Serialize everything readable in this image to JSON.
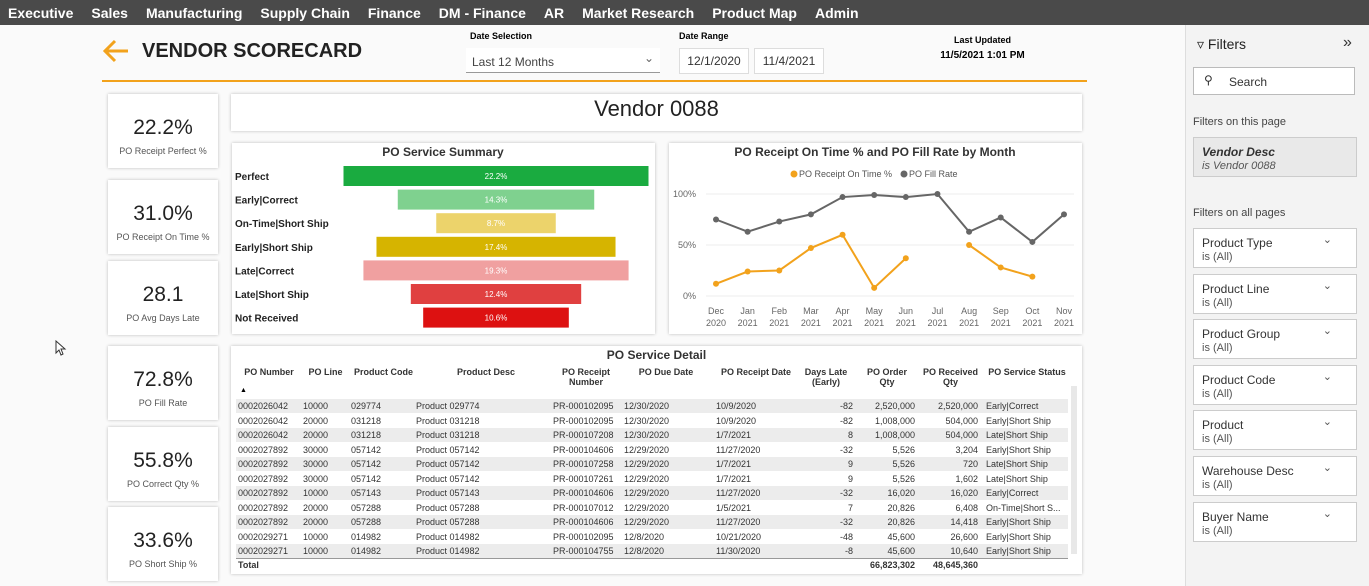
{
  "nav": [
    "Executive",
    "Sales",
    "Manufacturing",
    "Supply Chain",
    "Finance",
    "DM - Finance",
    "AR",
    "Market Research",
    "Product Map",
    "Admin"
  ],
  "header": {
    "title": "VENDOR SCORECARD",
    "date_selection_label": "Date Selection",
    "date_selection": "Last 12 Months",
    "date_range_label": "Date Range",
    "date_from": "12/1/2020",
    "date_to": "11/4/2021",
    "last_updated_label": "Last Updated",
    "last_updated": "11/5/2021 1:01 PM",
    "vendor": "Vendor 0088"
  },
  "kpis": [
    {
      "value": "22.2%",
      "label": "PO Receipt Perfect %"
    },
    {
      "value": "31.0%",
      "label": "PO Receipt On Time %"
    },
    {
      "value": "28.1",
      "label": "PO Avg Days Late"
    },
    {
      "value": "72.8%",
      "label": "PO Fill Rate"
    },
    {
      "value": "55.8%",
      "label": "PO Correct Qty %"
    },
    {
      "value": "33.6%",
      "label": "PO Short Ship %"
    }
  ],
  "chart_data": [
    {
      "type": "funnel",
      "title": "PO Service Summary",
      "categories": [
        "Perfect",
        "Early|Correct",
        "On-Time|Short Ship",
        "Early|Short Ship",
        "Late|Correct",
        "Late|Short Ship",
        "Not Received"
      ],
      "values": [
        22.2,
        14.3,
        8.7,
        17.4,
        19.3,
        12.4,
        10.6
      ],
      "value_labels": [
        "22.2%",
        "14.3%",
        "8.7%",
        "17.4%",
        "19.3%",
        "12.4%",
        "10.6%"
      ],
      "colors": [
        "#1aab40",
        "#7fd18f",
        "#ecd36b",
        "#d6b400",
        "#f0a0a0",
        "#e04040",
        "#dd1111"
      ]
    },
    {
      "type": "line",
      "title": "PO Receipt On Time % and PO Fill Rate by Month",
      "categories": [
        "Dec 2020",
        "Jan 2021",
        "Feb 2021",
        "Mar 2021",
        "Apr 2021",
        "May 2021",
        "Jun 2021",
        "Jul 2021",
        "Aug 2021",
        "Sep 2021",
        "Oct 2021",
        "Nov 2021"
      ],
      "series": [
        {
          "name": "PO Receipt On Time %",
          "color": "#f2a21c",
          "values": [
            12,
            24,
            25,
            47,
            60,
            8,
            37,
            null,
            50,
            28,
            19,
            null
          ]
        },
        {
          "name": "PO Fill Rate",
          "color": "#666666",
          "values": [
            75,
            63,
            73,
            80,
            97,
            99,
            97,
            100,
            63,
            77,
            53,
            80
          ]
        }
      ],
      "ylim": [
        0,
        100
      ],
      "yticks": [
        {
          "value": 0,
          "label": "0%"
        },
        {
          "value": 50,
          "label": "50%"
        },
        {
          "value": 100,
          "label": "100%"
        }
      ],
      "legend": "top"
    }
  ],
  "table": {
    "title": "PO Service Detail",
    "columns": [
      "PO Number",
      "PO Line",
      "Product Code",
      "Product Desc",
      "PO Receipt Number",
      "PO Due Date",
      "PO Receipt Date",
      "Days Late (Early)",
      "PO Order Qty",
      "PO Received Qty",
      "PO Service Status"
    ],
    "rows": [
      [
        "0002026042",
        "10000",
        "029774",
        "Product 029774",
        "PR-000102095",
        "12/30/2020",
        "10/9/2020",
        "-82",
        "2,520,000",
        "2,520,000",
        "Early|Correct"
      ],
      [
        "0002026042",
        "20000",
        "031218",
        "Product 031218",
        "PR-000102095",
        "12/30/2020",
        "10/9/2020",
        "-82",
        "1,008,000",
        "504,000",
        "Early|Short Ship"
      ],
      [
        "0002026042",
        "20000",
        "031218",
        "Product 031218",
        "PR-000107208",
        "12/30/2020",
        "1/7/2021",
        "8",
        "1,008,000",
        "504,000",
        "Late|Short Ship"
      ],
      [
        "0002027892",
        "30000",
        "057142",
        "Product 057142",
        "PR-000104606",
        "12/29/2020",
        "11/27/2020",
        "-32",
        "5,526",
        "3,204",
        "Early|Short Ship"
      ],
      [
        "0002027892",
        "30000",
        "057142",
        "Product 057142",
        "PR-000107258",
        "12/29/2020",
        "1/7/2021",
        "9",
        "5,526",
        "720",
        "Late|Short Ship"
      ],
      [
        "0002027892",
        "30000",
        "057142",
        "Product 057142",
        "PR-000107261",
        "12/29/2020",
        "1/7/2021",
        "9",
        "5,526",
        "1,602",
        "Late|Short Ship"
      ],
      [
        "0002027892",
        "10000",
        "057143",
        "Product 057143",
        "PR-000104606",
        "12/29/2020",
        "11/27/2020",
        "-32",
        "16,020",
        "16,020",
        "Early|Correct"
      ],
      [
        "0002027892",
        "20000",
        "057288",
        "Product 057288",
        "PR-000107012",
        "12/29/2020",
        "1/5/2021",
        "7",
        "20,826",
        "6,408",
        "On-Time|Short S..."
      ],
      [
        "0002027892",
        "20000",
        "057288",
        "Product 057288",
        "PR-000104606",
        "12/29/2020",
        "11/27/2020",
        "-32",
        "20,826",
        "14,418",
        "Early|Short Ship"
      ],
      [
        "0002029271",
        "10000",
        "014982",
        "Product 014982",
        "PR-000102095",
        "12/8/2020",
        "10/21/2020",
        "-48",
        "45,600",
        "26,600",
        "Early|Short Ship"
      ],
      [
        "0002029271",
        "10000",
        "014982",
        "Product 014982",
        "PR-000104755",
        "12/8/2020",
        "11/30/2020",
        "-8",
        "45,600",
        "10,640",
        "Early|Short Ship"
      ]
    ],
    "total": {
      "label": "Total",
      "order_qty": "66,823,302",
      "received_qty": "48,645,360"
    }
  },
  "filters": {
    "title": "Filters",
    "search": "Search",
    "page_label": "Filters on this page",
    "page_filter": {
      "name": "Vendor Desc",
      "value": "is Vendor 0088"
    },
    "all_label": "Filters on all pages",
    "all": [
      {
        "name": "Product Type",
        "value": "is (All)"
      },
      {
        "name": "Product Line",
        "value": "is (All)"
      },
      {
        "name": "Product Group",
        "value": "is (All)"
      },
      {
        "name": "Product Code",
        "value": "is (All)"
      },
      {
        "name": "Product",
        "value": "is (All)"
      },
      {
        "name": "Warehouse Desc",
        "value": "is (All)"
      },
      {
        "name": "Buyer Name",
        "value": "is (All)"
      }
    ]
  }
}
